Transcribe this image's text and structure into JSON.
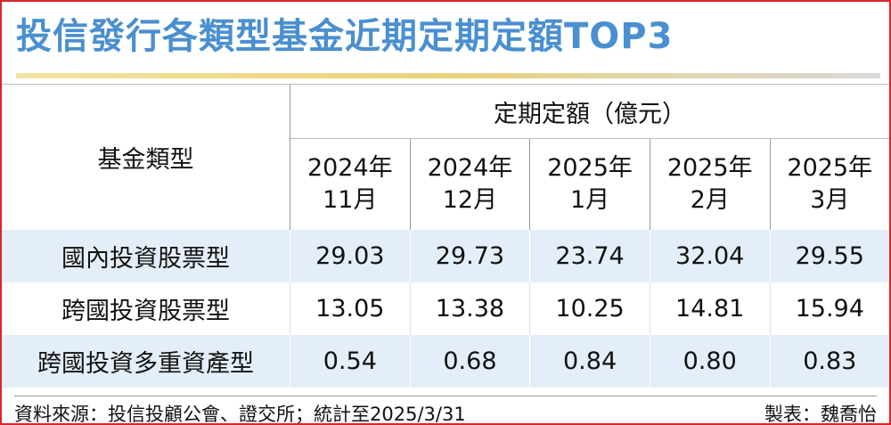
{
  "title": "投信發行各類型基金近期定期定額TOP3",
  "table": {
    "row_header": "基金類型",
    "group_header": "定期定額（億元）",
    "columns": [
      {
        "year": "2024年",
        "month": "11月"
      },
      {
        "year": "2024年",
        "month": "12月"
      },
      {
        "year": "2025年",
        "month": "1月"
      },
      {
        "year": "2025年",
        "month": "2月"
      },
      {
        "year": "2025年",
        "month": "3月"
      }
    ],
    "rows": [
      {
        "label": "國內投資股票型",
        "cells": [
          "29.03",
          "29.73",
          "23.74",
          "32.04",
          "29.55"
        ]
      },
      {
        "label": "跨國投資股票型",
        "cells": [
          "13.05",
          "13.38",
          "10.25",
          "14.81",
          "15.94"
        ]
      },
      {
        "label": "跨國投資多重資產型",
        "cells": [
          "0.54",
          "0.68",
          "0.84",
          "0.80",
          "0.83"
        ]
      }
    ]
  },
  "footer": {
    "source": "資料來源：投信投顧公會、證交所；統計至2025/3/31",
    "author": "製表：魏喬怡"
  }
}
